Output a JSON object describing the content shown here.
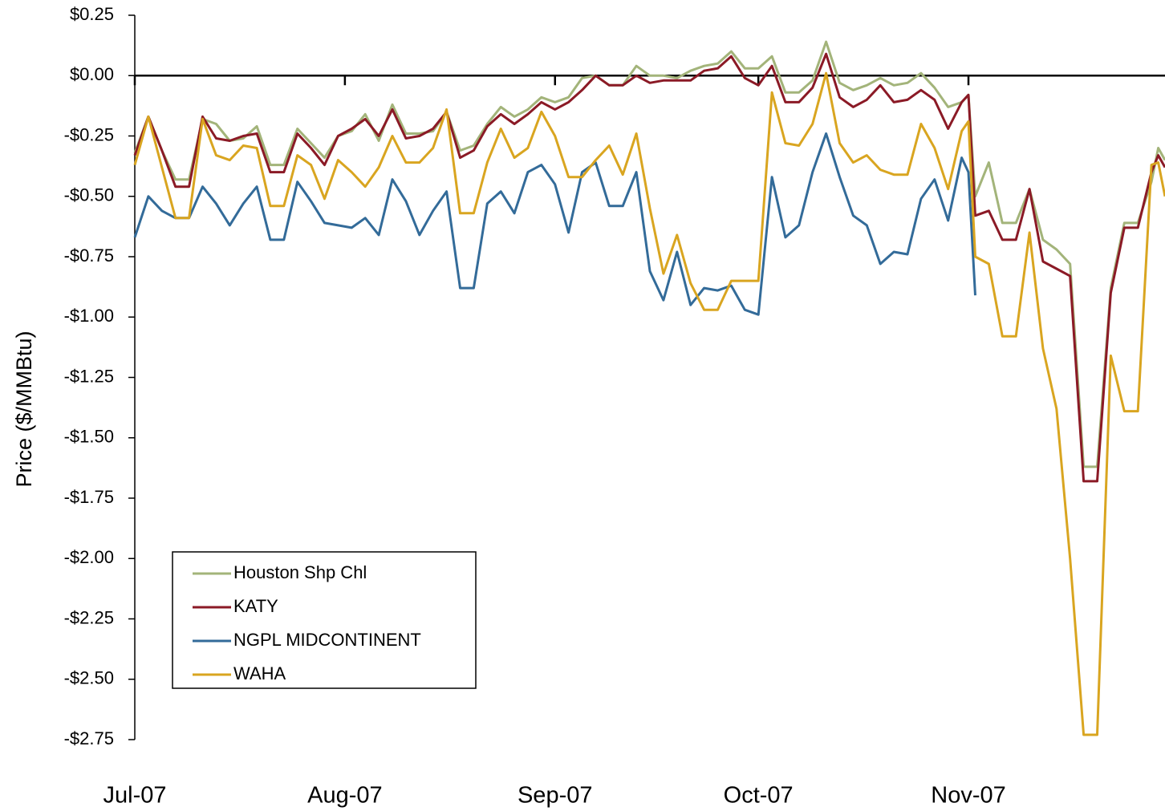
{
  "chart_data": {
    "type": "line",
    "y_label": "Price ($/MMBtu)",
    "x": [
      0,
      2,
      4,
      6,
      8,
      10,
      12,
      14,
      16,
      18,
      20,
      22,
      24,
      26,
      28,
      30,
      32,
      34,
      36,
      38,
      40,
      42,
      44,
      46,
      48,
      50,
      52,
      54,
      56,
      58,
      60,
      62,
      64,
      66,
      68,
      70,
      72,
      74,
      76,
      78,
      80,
      82,
      84,
      86,
      88,
      90,
      92,
      94,
      96,
      98,
      100,
      102,
      104,
      106,
      108,
      110,
      112,
      114,
      116,
      118,
      120,
      122,
      123,
      124,
      126,
      128,
      130,
      132,
      134,
      136,
      138,
      140,
      142,
      144,
      146,
      148,
      150,
      151,
      152
    ],
    "xlim": [
      0,
      152
    ],
    "xticks": [
      {
        "value": 0,
        "label": "Jul-07"
      },
      {
        "value": 31,
        "label": "Aug-07"
      },
      {
        "value": 62,
        "label": "Sep-07"
      },
      {
        "value": 92,
        "label": "Oct-07"
      },
      {
        "value": 123,
        "label": "Nov-07"
      }
    ],
    "ylim": [
      -2.75,
      0.25
    ],
    "yticks": [
      {
        "value": 0.25,
        "label": "$0.25"
      },
      {
        "value": 0,
        "label": "$0.00"
      },
      {
        "value": -0.25,
        "label": "-$0.25"
      },
      {
        "value": -0.5,
        "label": "-$0.50"
      },
      {
        "value": -0.75,
        "label": "-$0.75"
      },
      {
        "value": -1,
        "label": "-$1.00"
      },
      {
        "value": -1.25,
        "label": "-$1.25"
      },
      {
        "value": -1.5,
        "label": "-$1.50"
      },
      {
        "value": -1.75,
        "label": "-$1.75"
      },
      {
        "value": -2,
        "label": "-$2.00"
      },
      {
        "value": -2.25,
        "label": "-$2.25"
      },
      {
        "value": -2.5,
        "label": "-$2.50"
      },
      {
        "value": -2.75,
        "label": "-$2.75"
      }
    ],
    "grid": false,
    "legend": "lower left",
    "series": [
      {
        "name": "Houston Shp Chl",
        "color": "#a3b47a",
        "values": [
          -0.32,
          -0.17,
          -0.31,
          -0.43,
          -0.43,
          -0.18,
          -0.2,
          -0.27,
          -0.26,
          -0.21,
          -0.37,
          -0.37,
          -0.22,
          -0.28,
          -0.34,
          -0.25,
          -0.23,
          -0.16,
          -0.27,
          -0.12,
          -0.24,
          -0.24,
          -0.23,
          -0.15,
          -0.31,
          -0.29,
          -0.2,
          -0.13,
          -0.17,
          -0.14,
          -0.09,
          -0.11,
          -0.09,
          -0.01,
          0.0,
          -0.04,
          -0.04,
          0.04,
          0.0,
          0.0,
          -0.01,
          0.02,
          0.04,
          0.05,
          0.1,
          0.03,
          0.03,
          0.08,
          -0.07,
          -0.07,
          -0.02,
          0.14,
          -0.03,
          -0.06,
          -0.04,
          -0.01,
          -0.04,
          -0.03,
          0.01,
          -0.05,
          -0.13,
          -0.11,
          -0.08,
          -0.5,
          -0.36,
          -0.61,
          -0.61,
          -0.47,
          -0.68,
          -0.72,
          -0.78,
          -1.62,
          -1.62,
          -0.88,
          -0.61,
          -0.61,
          -0.44,
          -0.3,
          -0.35
        ]
      },
      {
        "name": "KATY",
        "color": "#8b1a26",
        "values": [
          -0.33,
          -0.17,
          -0.31,
          -0.46,
          -0.46,
          -0.17,
          -0.26,
          -0.27,
          -0.25,
          -0.24,
          -0.4,
          -0.4,
          -0.24,
          -0.3,
          -0.37,
          -0.25,
          -0.22,
          -0.18,
          -0.25,
          -0.14,
          -0.26,
          -0.25,
          -0.22,
          -0.15,
          -0.34,
          -0.31,
          -0.21,
          -0.16,
          -0.2,
          -0.16,
          -0.11,
          -0.14,
          -0.11,
          -0.06,
          0.0,
          -0.04,
          -0.04,
          0.0,
          -0.03,
          -0.02,
          -0.02,
          -0.02,
          0.02,
          0.03,
          0.08,
          -0.01,
          -0.04,
          0.04,
          -0.11,
          -0.11,
          -0.05,
          0.09,
          -0.09,
          -0.13,
          -0.1,
          -0.04,
          -0.11,
          -0.1,
          -0.06,
          -0.1,
          -0.22,
          -0.11,
          -0.08,
          -0.58,
          -0.56,
          -0.68,
          -0.68,
          -0.47,
          -0.77,
          -0.8,
          -0.83,
          -1.68,
          -1.68,
          -0.9,
          -0.63,
          -0.63,
          -0.4,
          -0.33,
          -0.38
        ]
      },
      {
        "name": "NGPL MIDCONTINENT",
        "color": "#336b99",
        "values": [
          -0.67,
          -0.5,
          -0.56,
          -0.59,
          -0.59,
          -0.46,
          -0.53,
          -0.62,
          -0.53,
          -0.46,
          -0.68,
          -0.68,
          -0.44,
          -0.52,
          -0.61,
          -0.62,
          -0.63,
          -0.59,
          -0.66,
          -0.43,
          -0.52,
          -0.66,
          -0.56,
          -0.48,
          -0.88,
          -0.88,
          -0.53,
          -0.48,
          -0.57,
          -0.4,
          -0.37,
          -0.45,
          -0.65,
          -0.4,
          -0.36,
          -0.54,
          -0.54,
          -0.4,
          -0.81,
          -0.93,
          -0.73,
          -0.95,
          -0.88,
          -0.89,
          -0.87,
          -0.97,
          -0.99,
          -0.42,
          -0.67,
          -0.62,
          -0.4,
          -0.24,
          -0.42,
          -0.58,
          -0.62,
          -0.78,
          -0.73,
          -0.74,
          -0.51,
          -0.43,
          -0.6,
          -0.34,
          -0.4,
          -0.91,
          null,
          null,
          null,
          null,
          null,
          null,
          null,
          null,
          null,
          null,
          null,
          null,
          null,
          null,
          null
        ]
      },
      {
        "name": "WAHA",
        "color": "#d9a520",
        "values": [
          -0.37,
          -0.17,
          -0.38,
          -0.59,
          -0.59,
          -0.18,
          -0.33,
          -0.35,
          -0.29,
          -0.3,
          -0.54,
          -0.54,
          -0.33,
          -0.37,
          -0.51,
          -0.35,
          -0.4,
          -0.46,
          -0.38,
          -0.25,
          -0.36,
          -0.36,
          -0.3,
          -0.14,
          -0.57,
          -0.57,
          -0.36,
          -0.22,
          -0.34,
          -0.3,
          -0.15,
          -0.25,
          -0.42,
          -0.42,
          -0.35,
          -0.29,
          -0.41,
          -0.24,
          -0.55,
          -0.82,
          -0.66,
          -0.86,
          -0.97,
          -0.97,
          -0.85,
          -0.85,
          -0.85,
          -0.07,
          -0.28,
          -0.29,
          -0.2,
          0.01,
          -0.28,
          -0.36,
          -0.33,
          -0.39,
          -0.41,
          -0.41,
          -0.2,
          -0.3,
          -0.47,
          -0.23,
          -0.19,
          -0.75,
          -0.78,
          -1.08,
          -1.08,
          -0.65,
          -1.13,
          -1.38,
          -2.0,
          -2.73,
          -2.73,
          -1.16,
          -1.39,
          -1.39,
          -0.37,
          -0.36,
          -0.5
        ]
      }
    ]
  }
}
